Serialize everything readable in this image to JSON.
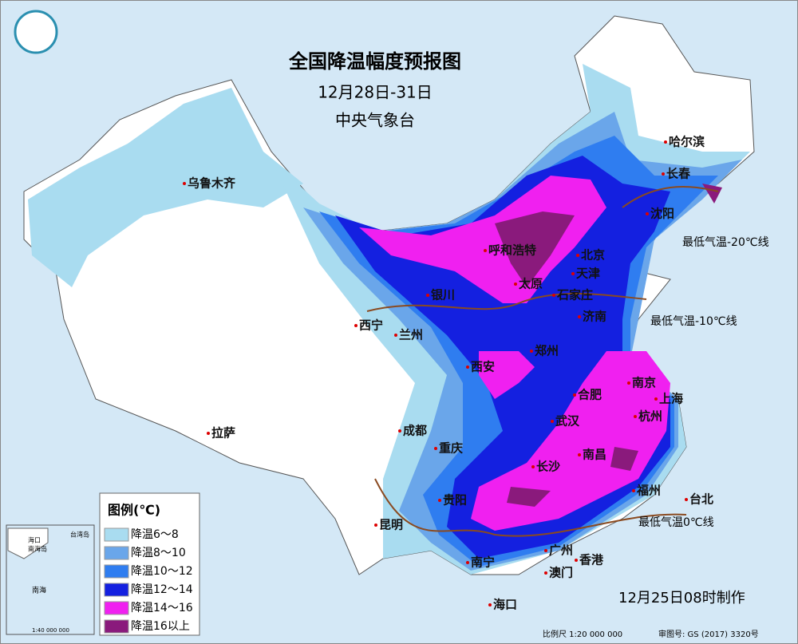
{
  "header": {
    "title": "全国降温幅度预报图",
    "date_range": "12月28日-31日",
    "agency": "中央气象台"
  },
  "legend": {
    "title": "图例(℃)",
    "items": [
      {
        "label": "降温6～8",
        "color": "#a9dcf0"
      },
      {
        "label": "降温8～10",
        "color": "#6aa6ea"
      },
      {
        "label": "降温10～12",
        "color": "#2f7df0"
      },
      {
        "label": "降温12～14",
        "color": "#1420e0"
      },
      {
        "label": "降温14～16",
        "color": "#f020f0"
      },
      {
        "label": "降温16以上",
        "color": "#8a1a7c"
      }
    ]
  },
  "cities": [
    "乌鲁木齐",
    "哈尔滨",
    "长春",
    "沈阳",
    "呼和浩特",
    "北京",
    "天津",
    "太原",
    "石家庄",
    "银川",
    "济南",
    "西宁",
    "兰州",
    "郑州",
    "西安",
    "南京",
    "合肥",
    "上海",
    "杭州",
    "拉萨",
    "成都",
    "武汉",
    "重庆",
    "长沙",
    "南昌",
    "贵阳",
    "福州",
    "台北",
    "昆明",
    "南宁",
    "广州",
    "香港",
    "澳门",
    "海口"
  ],
  "isotherms": [
    "最低气温-20℃线",
    "最低气温-10℃线",
    "最低气温0℃线"
  ],
  "inset": {
    "labels": [
      "台湾岛",
      "海口",
      "南海岛",
      "南海",
      "1:40 000 000"
    ]
  },
  "footer": {
    "issued": "12月25日08时制作",
    "scale": "比例尺 1:20 000 000",
    "approval": "审图号: GS (2017) 3320号"
  }
}
